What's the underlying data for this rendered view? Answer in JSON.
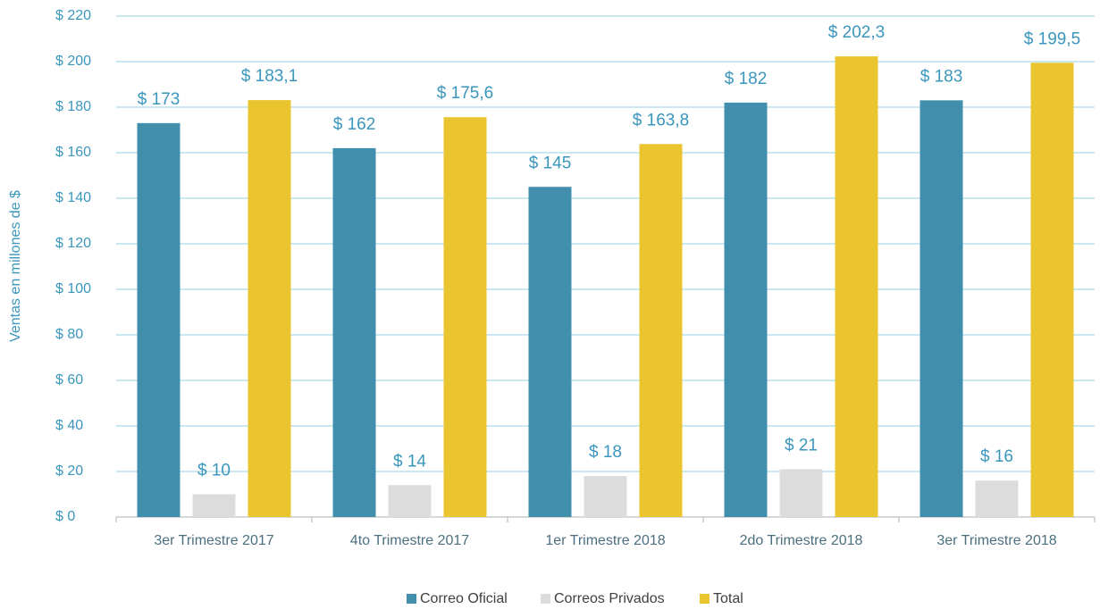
{
  "chart_data": {
    "type": "bar",
    "y_label": "Ventas en millones de $",
    "categories": [
      "3er Trimestre 2017",
      "4to Trimestre 2017",
      "1er Trimestre 2018",
      "2do Trimestre 2018",
      "3er Trimestre 2018"
    ],
    "series": [
      {
        "name": "Correo Oficial",
        "color": "#428fad",
        "values": [
          173,
          162,
          145,
          182,
          183
        ],
        "value_labels": [
          "$ 173",
          "$ 162",
          "$ 145",
          "$ 182",
          "$ 183"
        ]
      },
      {
        "name": "Correos Privados",
        "color": "#dcdcdc",
        "values": [
          10,
          14,
          18,
          21,
          16
        ],
        "value_labels": [
          "$ 10",
          "$ 14",
          "$ 18",
          "$ 21",
          "$ 16"
        ]
      },
      {
        "name": "Total",
        "color": "#ebc52f",
        "values": [
          183.1,
          175.6,
          163.8,
          202.3,
          199.5
        ],
        "value_labels": [
          "$ 183,1",
          "$ 175,6",
          "$ 163,8",
          "$ 202,3",
          "$ 199,5"
        ]
      }
    ],
    "ylim": [
      0,
      220
    ],
    "yticks": [
      {
        "value": 0,
        "label": "$ 0"
      },
      {
        "value": 20,
        "label": "$ 20"
      },
      {
        "value": 40,
        "label": "$ 40"
      },
      {
        "value": 60,
        "label": "$ 60"
      },
      {
        "value": 80,
        "label": "$ 80"
      },
      {
        "value": 100,
        "label": "$ 100"
      },
      {
        "value": 120,
        "label": "$ 120"
      },
      {
        "value": 140,
        "label": "$ 140"
      },
      {
        "value": 160,
        "label": "$ 160"
      },
      {
        "value": 180,
        "label": "$ 180"
      },
      {
        "value": 200,
        "label": "$ 200"
      },
      {
        "value": 220,
        "label": "$ 220"
      }
    ],
    "grid": true,
    "legend": "bottom"
  }
}
